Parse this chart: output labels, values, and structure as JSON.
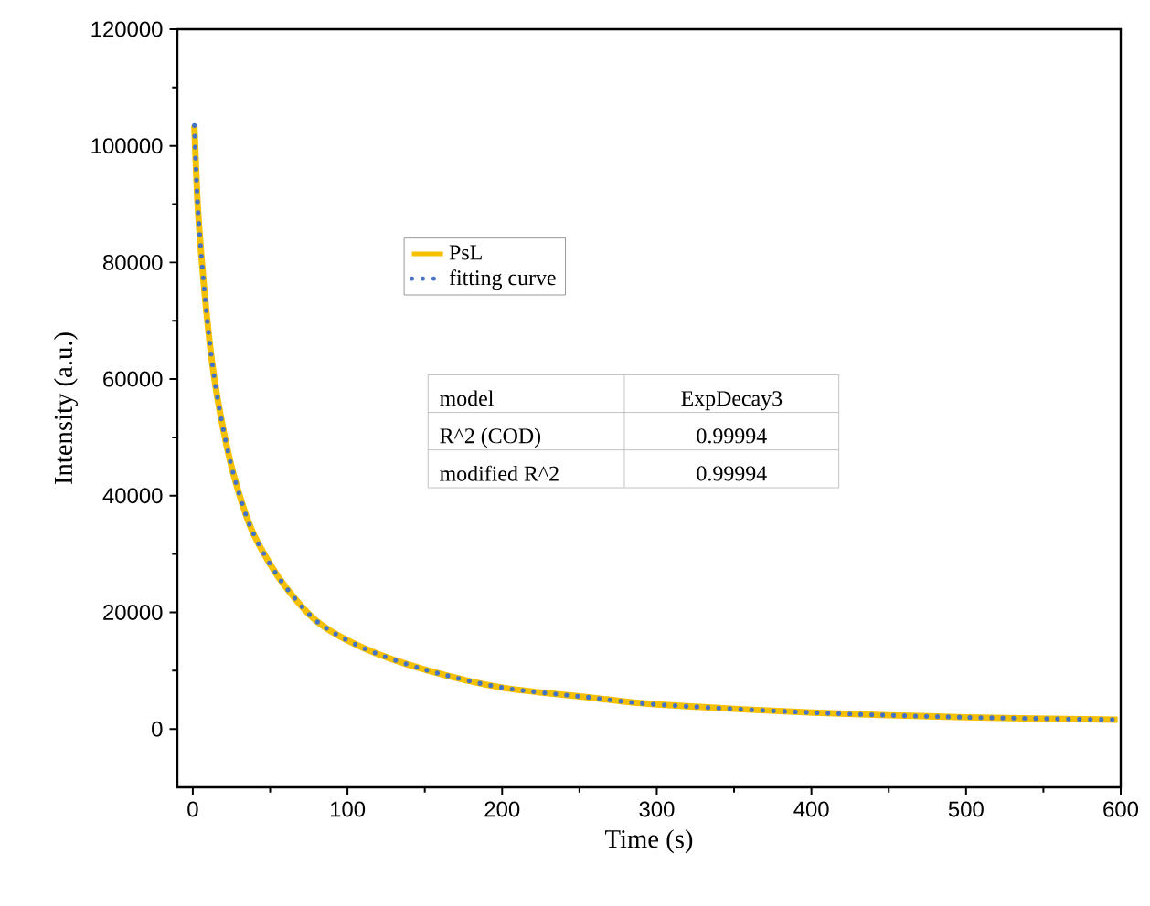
{
  "chart_data": {
    "type": "line",
    "xlabel": "Time (s)",
    "ylabel": "Intensity (a.u.)",
    "x": [
      1,
      3,
      5.5,
      8.7,
      12.7,
      18.5,
      26.4,
      38,
      56,
      80,
      111,
      151,
      200,
      257,
      300,
      401,
      500,
      598
    ],
    "series": [
      {
        "name": "PsL",
        "color": "#f5c000",
        "line_style": "solid",
        "values": [
          103500,
          90600,
          81200,
          71800,
          62400,
          53000,
          43600,
          34200,
          25800,
          18500,
          13800,
          10100,
          7100,
          5400,
          4200,
          2800,
          2000,
          1600
        ]
      },
      {
        "name": "fitting curve",
        "color": "#4472c4",
        "line_style": "dotted",
        "values": [
          103500,
          90600,
          81200,
          71800,
          62400,
          53000,
          43600,
          34200,
          25800,
          18500,
          13800,
          10100,
          7100,
          5400,
          4200,
          2800,
          2000,
          1600
        ]
      }
    ],
    "xlim": [
      -10,
      600
    ],
    "ylim": [
      -10000,
      120000
    ],
    "xticks": [
      0,
      100,
      200,
      300,
      400,
      500,
      600
    ],
    "yticks": [
      0,
      20000,
      40000,
      60000,
      80000,
      100000,
      120000
    ],
    "legend": "top",
    "grid": false,
    "marker": "none",
    "annotations": [
      "model",
      "ExpDecay3",
      "R^2 (COD)",
      "0.99994",
      "modified R^2",
      "0.99994"
    ]
  }
}
